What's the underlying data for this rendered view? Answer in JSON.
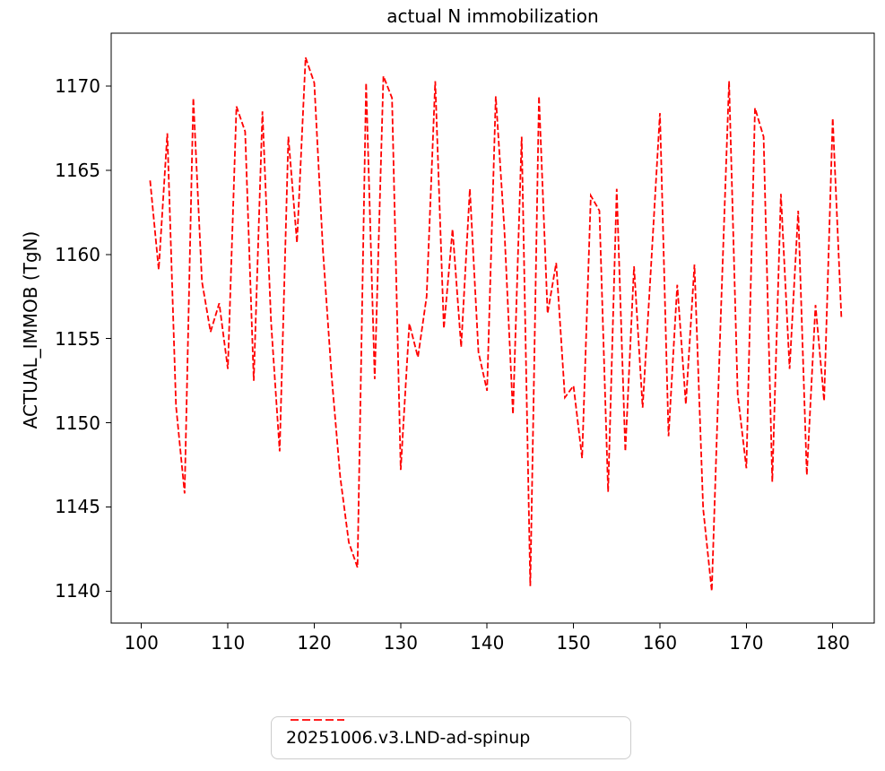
{
  "figure": {
    "title": "actual N immobilization",
    "y_axis_label": "ACTUAL_IMMOB (TgN)"
  },
  "legend": {
    "label": "20251006.v3.LND-ad-spinup"
  },
  "chart_data": {
    "type": "line",
    "title": "actual N immobilization",
    "xlabel": "",
    "ylabel": "ACTUAL_IMMOB (TgN)",
    "grid": false,
    "legend_position": "below-center",
    "xlim": [
      96.5,
      184.8
    ],
    "ylim": [
      1138.1,
      1173.15
    ],
    "xticks": [
      100,
      110,
      120,
      130,
      140,
      150,
      160,
      170,
      180
    ],
    "yticks": [
      1140,
      1145,
      1150,
      1155,
      1160,
      1165,
      1170
    ],
    "axis_color": "#000000",
    "series": [
      {
        "name": "20251006.v3.LND-ad-spinup",
        "color": "#ff0000",
        "linestyle": "dashed",
        "linewidth": 1.8,
        "x_start": 101,
        "x_step": 1,
        "values": [
          1164.4,
          1159.1,
          1167.2,
          1151.0,
          1145.8,
          1169.3,
          1158.4,
          1155.4,
          1157.1,
          1153.2,
          1168.8,
          1167.3,
          1152.5,
          1168.5,
          1156.0,
          1148.3,
          1167.0,
          1160.7,
          1171.7,
          1170.2,
          1160.3,
          1152.8,
          1146.8,
          1142.9,
          1141.4,
          1170.2,
          1152.6,
          1170.6,
          1169.3,
          1147.2,
          1155.9,
          1153.9,
          1157.5,
          1170.3,
          1155.6,
          1161.5,
          1154.5,
          1163.9,
          1154.2,
          1151.9,
          1169.4,
          1161.5,
          1150.5,
          1167.0,
          1140.3,
          1169.4,
          1156.5,
          1159.5,
          1151.5,
          1152.2,
          1147.9,
          1163.5,
          1162.6,
          1145.9,
          1163.9,
          1148.3,
          1159.3,
          1150.9,
          1159.5,
          1168.4,
          1149.2,
          1158.2,
          1151.1,
          1159.4,
          1144.9,
          1140.0,
          1155.8,
          1170.3,
          1151.7,
          1147.3,
          1168.7,
          1167.0,
          1146.5,
          1163.6,
          1153.2,
          1162.6,
          1146.9,
          1157.0,
          1151.3,
          1168.1,
          1156.2
        ]
      }
    ]
  }
}
